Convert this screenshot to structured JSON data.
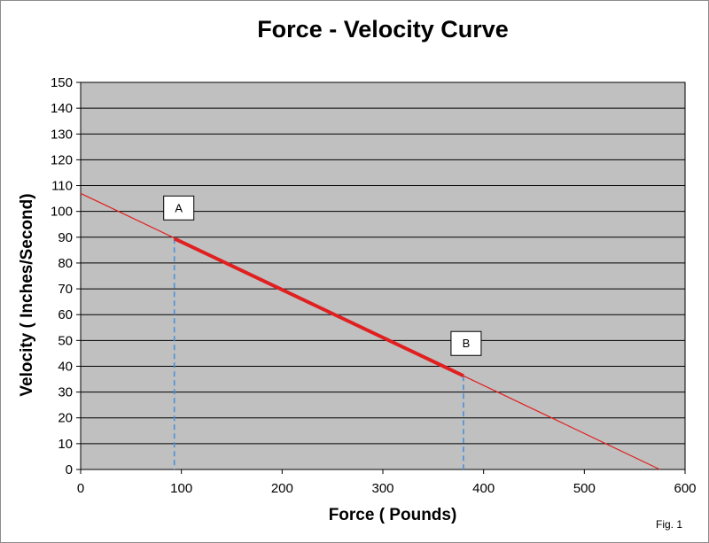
{
  "chart_data": {
    "type": "line",
    "title": "Force - Velocity Curve",
    "xlabel": "Force ( Pounds)",
    "ylabel": "Velocity ( Inches/Second)",
    "xlim": [
      0,
      600
    ],
    "ylim": [
      0,
      150
    ],
    "xticks": [
      "0",
      "100",
      "200",
      "300",
      "400",
      "500",
      "600"
    ],
    "yticks": [
      "0",
      "10",
      "20",
      "30",
      "40",
      "50",
      "60",
      "70",
      "80",
      "90",
      "100",
      "110",
      "120",
      "130",
      "140",
      "150"
    ],
    "grid": "horizontal",
    "plot_background": "#c0c0c0",
    "series": [
      {
        "color": "#e02020",
        "points": [
          [
            0,
            107
          ],
          [
            575,
            0
          ]
        ]
      },
      {
        "color": "#e02020",
        "emphasis": "thick",
        "points": [
          [
            93,
            89.5
          ],
          [
            380,
            36.3
          ]
        ]
      }
    ],
    "reference_lines": [
      {
        "x": 93,
        "y": 89.5,
        "style": "dashed",
        "color": "#4a90d9"
      },
      {
        "x": 380,
        "y": 36.3,
        "style": "dashed",
        "color": "#4a90d9"
      }
    ],
    "annotations": [
      {
        "text": "A",
        "x": 93,
        "y": 89.5
      },
      {
        "text": "B",
        "x": 380,
        "y": 36.3
      }
    ],
    "footnote": "Fig. 1"
  }
}
